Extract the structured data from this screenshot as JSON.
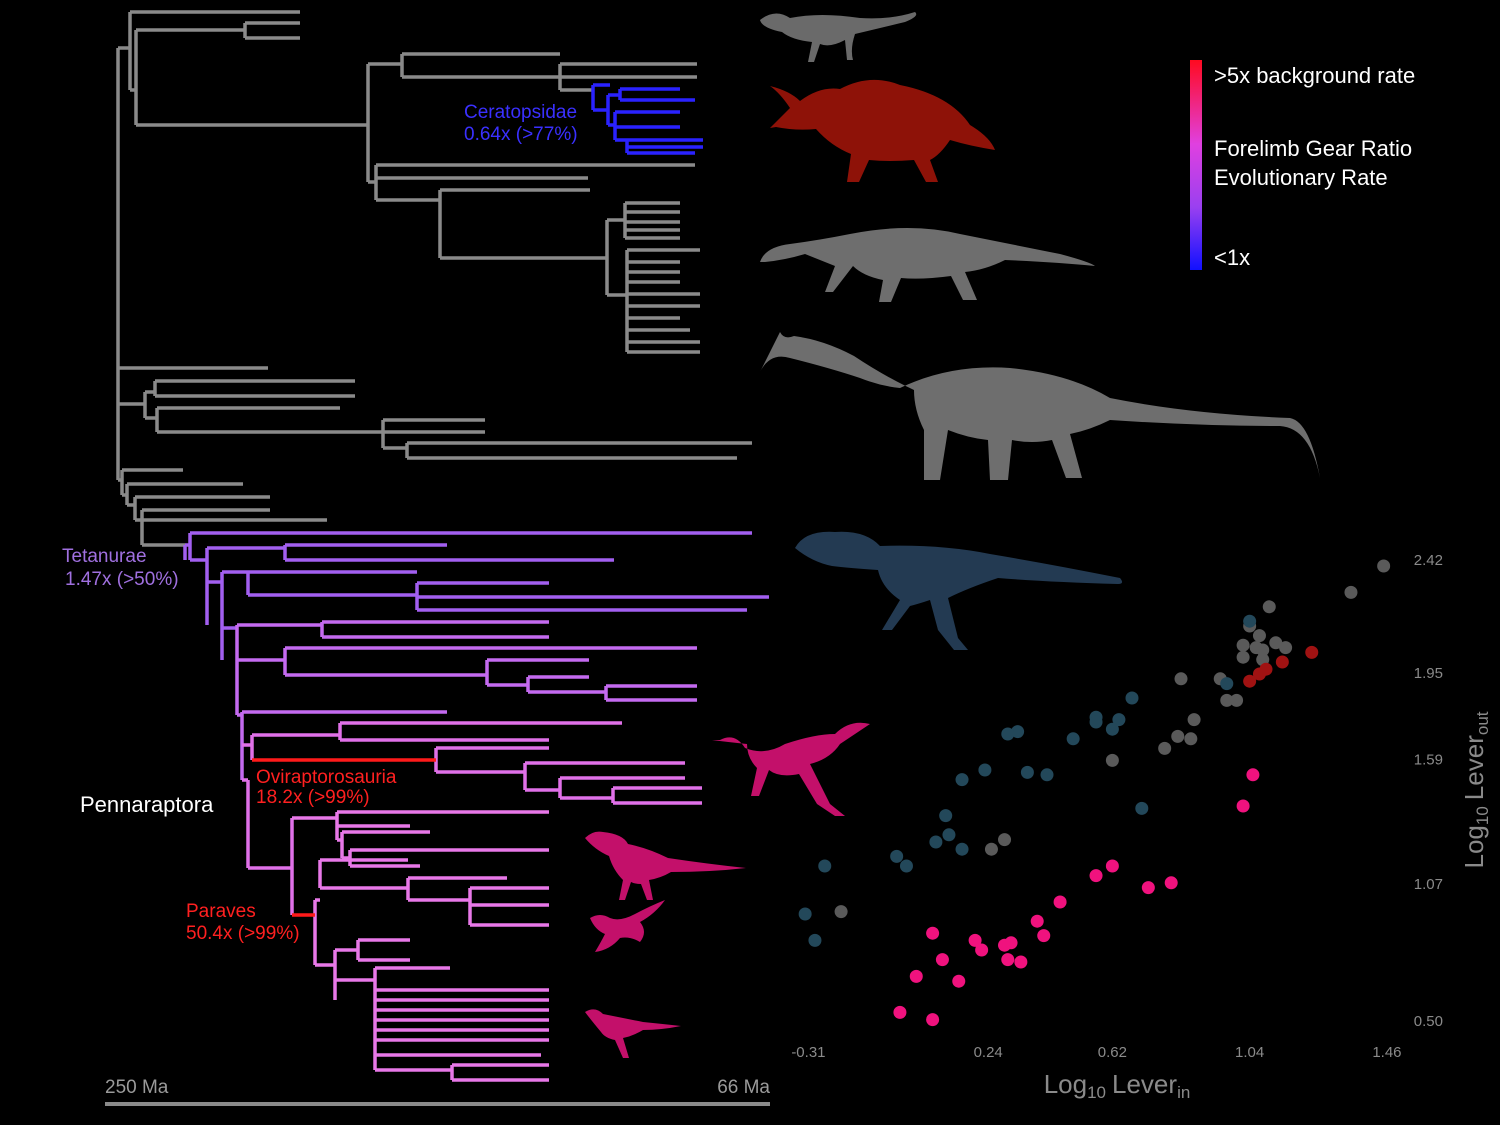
{
  "tree": {
    "clades": [
      {
        "name": "Ceratopsidae",
        "rate": "0.64x (>77%)"
      },
      {
        "name": "Tetanurae",
        "rate": "1.47x (>50%)"
      },
      {
        "name": "Pennaraptora"
      },
      {
        "name": "Oviraptorosauria",
        "rate": "18.2x (>99%)"
      },
      {
        "name": "Paraves",
        "rate": "50.4x (>99%)"
      }
    ],
    "time_axis": [
      "250 Ma",
      "66 Ma"
    ]
  },
  "legend": {
    "top": ">5x background rate",
    "middle": [
      "Forelimb Gear Ratio",
      "Evolutionary Rate"
    ],
    "bottom": "<1x"
  },
  "chart_data": {
    "type": "scatter",
    "xlabel": [
      "Log",
      "10",
      "Lever",
      "in"
    ],
    "ylabel": [
      "Log",
      "10",
      "Lever",
      "out"
    ],
    "xlim": [
      -0.4,
      1.5
    ],
    "ylim": [
      0.4,
      2.5
    ],
    "xticks": [
      -0.31,
      0.24,
      0.62,
      1.04,
      1.46
    ],
    "yticks": [
      {
        "value": 0.5,
        "label": "0.50"
      },
      1.07,
      1.59,
      1.95,
      2.42
    ],
    "series": [
      {
        "color": "#5a5a5a",
        "x": [
          1.45,
          1.35,
          1.1,
          1.04,
          1.07,
          1.02,
          1.06,
          1.08,
          1.12,
          1.15,
          1.02,
          1.08,
          0.83,
          0.95,
          0.97,
          1.0,
          0.87,
          0.82,
          0.86,
          0.78,
          0.62,
          0.29,
          0.25,
          -0.21
        ],
        "values": [
          2.4,
          2.29,
          2.23,
          2.15,
          2.11,
          2.07,
          2.06,
          2.05,
          2.08,
          2.06,
          2.02,
          2.01,
          1.93,
          1.93,
          1.84,
          1.84,
          1.76,
          1.69,
          1.68,
          1.64,
          1.59,
          1.26,
          1.22,
          0.96
        ]
      },
      {
        "color": "#23485a",
        "x": [
          1.04,
          0.97,
          0.68,
          0.57,
          0.57,
          0.64,
          0.62,
          0.5,
          0.33,
          0.3,
          0.23,
          0.16,
          0.36,
          0.42,
          0.71,
          0.11,
          0.12,
          0.08,
          0.16,
          -0.04,
          -0.01,
          -0.26,
          -0.32,
          -0.29
        ],
        "values": [
          2.17,
          1.91,
          1.85,
          1.77,
          1.75,
          1.76,
          1.72,
          1.68,
          1.71,
          1.7,
          1.55,
          1.51,
          1.54,
          1.53,
          1.39,
          1.36,
          1.28,
          1.25,
          1.22,
          1.19,
          1.15,
          1.15,
          0.95,
          0.84
        ]
      },
      {
        "color": "#a01212",
        "x": [
          1.23,
          1.14,
          1.09,
          1.07,
          1.04
        ],
        "values": [
          2.04,
          2.0,
          1.97,
          1.95,
          1.92
        ]
      },
      {
        "color": "#f0127e",
        "x": [
          1.05,
          1.02,
          0.62,
          0.57,
          0.73,
          0.8,
          0.46,
          0.39,
          0.41,
          0.07,
          0.2,
          0.29,
          0.31,
          0.22,
          0.1,
          0.3,
          0.34,
          0.02,
          0.15,
          -0.03,
          0.07
        ],
        "values": [
          1.53,
          1.4,
          1.15,
          1.11,
          1.06,
          1.08,
          1.0,
          0.92,
          0.86,
          0.87,
          0.84,
          0.82,
          0.83,
          0.8,
          0.76,
          0.76,
          0.75,
          0.69,
          0.67,
          0.54,
          0.51
        ]
      }
    ]
  }
}
